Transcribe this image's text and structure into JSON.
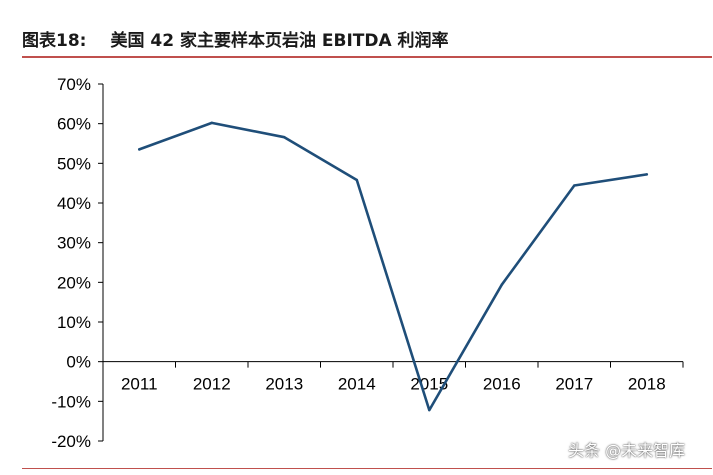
{
  "figure": {
    "label": "图表18:",
    "title": "美国 42 家主要样本页岩油 EBITDA 利润率"
  },
  "watermark": "头条 @未来智库",
  "colors": {
    "line": "#1f4e79",
    "rule": "#c0504d",
    "axis": "#000000"
  },
  "chart_data": {
    "type": "line",
    "title": "",
    "xlabel": "",
    "ylabel": "",
    "categories": [
      "2011",
      "2012",
      "2013",
      "2014",
      "2015",
      "2016",
      "2017",
      "2018"
    ],
    "series": [
      {
        "values": [
          53.5,
          60.2,
          56.6,
          45.8,
          -12.2,
          19.4,
          44.4,
          47.2
        ]
      }
    ],
    "ylim": [
      -20,
      70
    ],
    "yticks": [
      -20,
      -10,
      0,
      10,
      20,
      30,
      40,
      50,
      60,
      70
    ],
    "ytick_labels": [
      "-20%",
      "-10%",
      "0%",
      "10%",
      "20%",
      "30%",
      "40%",
      "50%",
      "60%",
      "70%"
    ],
    "grid": false,
    "legend": "none"
  }
}
